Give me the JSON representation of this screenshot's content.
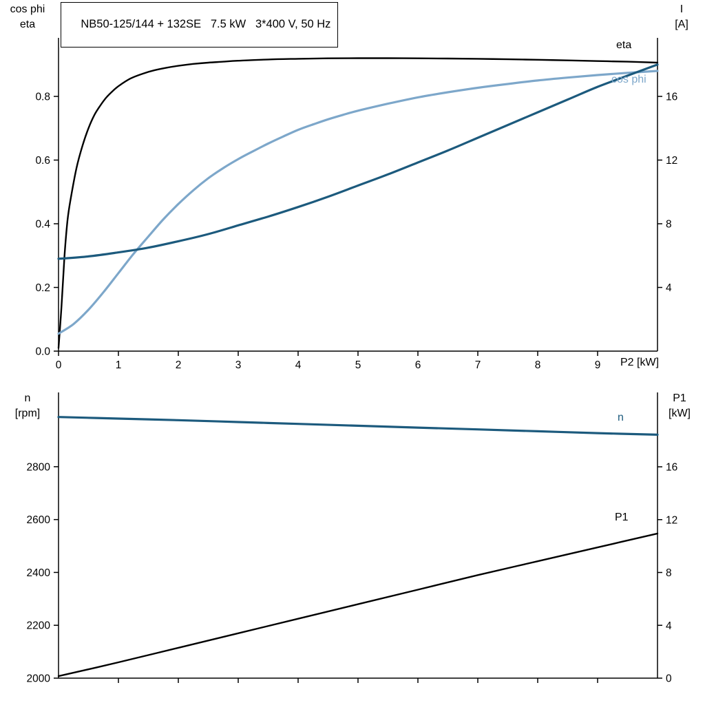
{
  "header": {
    "title": "NB50-125/144 + 132SE   7.5 kW   3*400 V, 50 Hz"
  },
  "colors": {
    "black": "#000000",
    "dark_blue": "#1c5a7d",
    "light_blue": "#7da7ca",
    "background": "#ffffff"
  },
  "labels": {
    "top_left_line1": "cos phi",
    "top_left_line2": "eta",
    "top_right_line1": "I",
    "top_right_line2": "[A]",
    "x_axis_end": "P2 [kW]",
    "bottom_left_line1": "n",
    "bottom_left_line2": "[rpm]",
    "bottom_right_line1": "P1",
    "bottom_right_line2": "[kW]",
    "eta_curve": "eta",
    "cos_phi_curve": "cos phi",
    "n_curve": "n",
    "p1_curve": "P1"
  },
  "chart_data": [
    {
      "type": "line",
      "title": "NB50-125/144 + 132SE   7.5 kW   3*400 V, 50 Hz",
      "x_axis": {
        "label": "P2 [kW]",
        "min": 0,
        "max": 10,
        "ticks": [
          {
            "v": 0,
            "t": "0"
          },
          {
            "v": 1,
            "t": "1"
          },
          {
            "v": 2,
            "t": "2"
          },
          {
            "v": 3,
            "t": "3"
          },
          {
            "v": 4,
            "t": "4"
          },
          {
            "v": 5,
            "t": "5"
          },
          {
            "v": 6,
            "t": "6"
          },
          {
            "v": 7,
            "t": "7"
          },
          {
            "v": 8,
            "t": "8"
          },
          {
            "v": 9,
            "t": "9"
          }
        ]
      },
      "left_axis": {
        "label": "cos phi / eta",
        "min": 0,
        "max": 0.9838,
        "ticks": [
          {
            "v": 0,
            "t": "0.0"
          },
          {
            "v": 0.2,
            "t": "0.2"
          },
          {
            "v": 0.4,
            "t": "0.4"
          },
          {
            "v": 0.6,
            "t": "0.6"
          },
          {
            "v": 0.8,
            "t": "0.8"
          }
        ]
      },
      "right_axis": {
        "label": "I [A]",
        "min": 0,
        "max": 19.676,
        "ticks": [
          {
            "v": 4,
            "t": "4"
          },
          {
            "v": 8,
            "t": "8"
          },
          {
            "v": 12,
            "t": "12"
          },
          {
            "v": 16,
            "t": "16"
          }
        ]
      },
      "grid": false,
      "series": [
        {
          "name": "eta",
          "color": "#000000",
          "axis": "left",
          "width": 2.4,
          "points": [
            [
              0,
              0.01
            ],
            [
              0.05,
              0.14
            ],
            [
              0.1,
              0.3
            ],
            [
              0.15,
              0.41
            ],
            [
              0.2,
              0.475
            ],
            [
              0.3,
              0.575
            ],
            [
              0.4,
              0.645
            ],
            [
              0.5,
              0.7
            ],
            [
              0.6,
              0.742
            ],
            [
              0.7,
              0.772
            ],
            [
              0.8,
              0.797
            ],
            [
              0.9,
              0.816
            ],
            [
              1,
              0.832
            ],
            [
              1.2,
              0.856
            ],
            [
              1.4,
              0.871
            ],
            [
              1.6,
              0.882
            ],
            [
              1.8,
              0.89
            ],
            [
              2,
              0.896
            ],
            [
              2.25,
              0.902
            ],
            [
              2.5,
              0.906
            ],
            [
              2.75,
              0.909
            ],
            [
              3,
              0.912
            ],
            [
              3.5,
              0.916
            ],
            [
              4,
              0.918
            ],
            [
              4.5,
              0.9195
            ],
            [
              5,
              0.92
            ],
            [
              5.5,
              0.92
            ],
            [
              6,
              0.9195
            ],
            [
              6.5,
              0.919
            ],
            [
              7,
              0.918
            ],
            [
              7.5,
              0.9165
            ],
            [
              8,
              0.915
            ],
            [
              8.5,
              0.913
            ],
            [
              9,
              0.911
            ],
            [
              9.5,
              0.909
            ],
            [
              10,
              0.906
            ]
          ]
        },
        {
          "name": "cos phi",
          "color": "#7da7ca",
          "axis": "left",
          "width": 3.2,
          "points": [
            [
              0,
              0.055
            ],
            [
              0.25,
              0.085
            ],
            [
              0.5,
              0.13
            ],
            [
              0.75,
              0.185
            ],
            [
              1,
              0.245
            ],
            [
              1.25,
              0.305
            ],
            [
              1.5,
              0.36
            ],
            [
              1.75,
              0.414
            ],
            [
              2,
              0.462
            ],
            [
              2.25,
              0.505
            ],
            [
              2.5,
              0.543
            ],
            [
              2.75,
              0.575
            ],
            [
              3,
              0.603
            ],
            [
              3.25,
              0.628
            ],
            [
              3.5,
              0.652
            ],
            [
              3.75,
              0.674
            ],
            [
              4,
              0.695
            ],
            [
              4.25,
              0.712
            ],
            [
              4.5,
              0.728
            ],
            [
              4.75,
              0.742
            ],
            [
              5,
              0.755
            ],
            [
              5.5,
              0.777
            ],
            [
              6,
              0.797
            ],
            [
              6.5,
              0.813
            ],
            [
              7,
              0.827
            ],
            [
              7.5,
              0.839
            ],
            [
              8,
              0.85
            ],
            [
              8.5,
              0.859
            ],
            [
              9,
              0.867
            ],
            [
              9.5,
              0.874
            ],
            [
              10,
              0.88
            ]
          ]
        },
        {
          "name": "I",
          "color": "#1c5a7d",
          "axis": "right",
          "width": 3.2,
          "points": [
            [
              0,
              5.8
            ],
            [
              0.5,
              5.95
            ],
            [
              1,
              6.2
            ],
            [
              1.5,
              6.5
            ],
            [
              2,
              6.9
            ],
            [
              2.5,
              7.35
            ],
            [
              3,
              7.9
            ],
            [
              3.5,
              8.45
            ],
            [
              4,
              9.05
            ],
            [
              4.5,
              9.7
            ],
            [
              5,
              10.4
            ],
            [
              5.5,
              11.1
            ],
            [
              6,
              11.85
            ],
            [
              6.5,
              12.6
            ],
            [
              7,
              13.4
            ],
            [
              7.5,
              14.2
            ],
            [
              8,
              15.0
            ],
            [
              8.5,
              15.8
            ],
            [
              9,
              16.6
            ],
            [
              9.5,
              17.3
            ],
            [
              10,
              18.0
            ]
          ]
        }
      ]
    },
    {
      "type": "line",
      "title": "",
      "x_axis": {
        "label": "",
        "min": 0,
        "max": 10,
        "ticks": [
          {
            "v": 1,
            "t": ""
          },
          {
            "v": 2,
            "t": ""
          },
          {
            "v": 3,
            "t": ""
          },
          {
            "v": 4,
            "t": ""
          },
          {
            "v": 5,
            "t": ""
          },
          {
            "v": 6,
            "t": ""
          },
          {
            "v": 7,
            "t": ""
          },
          {
            "v": 8,
            "t": ""
          },
          {
            "v": 9,
            "t": ""
          }
        ]
      },
      "left_axis": {
        "label": "n [rpm]",
        "min": 2000,
        "max": 3081,
        "ticks": [
          {
            "v": 2000,
            "t": "2000"
          },
          {
            "v": 2200,
            "t": "2200"
          },
          {
            "v": 2400,
            "t": "2400"
          },
          {
            "v": 2600,
            "t": "2600"
          },
          {
            "v": 2800,
            "t": "2800"
          }
        ]
      },
      "right_axis": {
        "label": "P1 [kW]",
        "min": 0,
        "max": 21.63,
        "ticks": [
          {
            "v": 0,
            "t": "0"
          },
          {
            "v": 4,
            "t": "4"
          },
          {
            "v": 8,
            "t": "8"
          },
          {
            "v": 12,
            "t": "12"
          },
          {
            "v": 16,
            "t": "16"
          }
        ]
      },
      "grid": false,
      "series": [
        {
          "name": "n",
          "color": "#1c5a7d",
          "axis": "left",
          "width": 3.2,
          "points": [
            [
              0,
              2988
            ],
            [
              1,
              2982
            ],
            [
              2,
              2976
            ],
            [
              3,
              2969
            ],
            [
              4,
              2962
            ],
            [
              5,
              2955
            ],
            [
              6,
              2948
            ],
            [
              7,
              2941
            ],
            [
              8,
              2934
            ],
            [
              9,
              2927
            ],
            [
              10,
              2921
            ]
          ]
        },
        {
          "name": "P1",
          "color": "#000000",
          "axis": "right",
          "width": 2.4,
          "points": [
            [
              0,
              0.15
            ],
            [
              1,
              1.2
            ],
            [
              2,
              2.3
            ],
            [
              3,
              3.4
            ],
            [
              4,
              4.5
            ],
            [
              5,
              5.6
            ],
            [
              6,
              6.7
            ],
            [
              7,
              7.8
            ],
            [
              8,
              8.85
            ],
            [
              9,
              9.9
            ],
            [
              10,
              10.95
            ]
          ]
        }
      ]
    }
  ]
}
